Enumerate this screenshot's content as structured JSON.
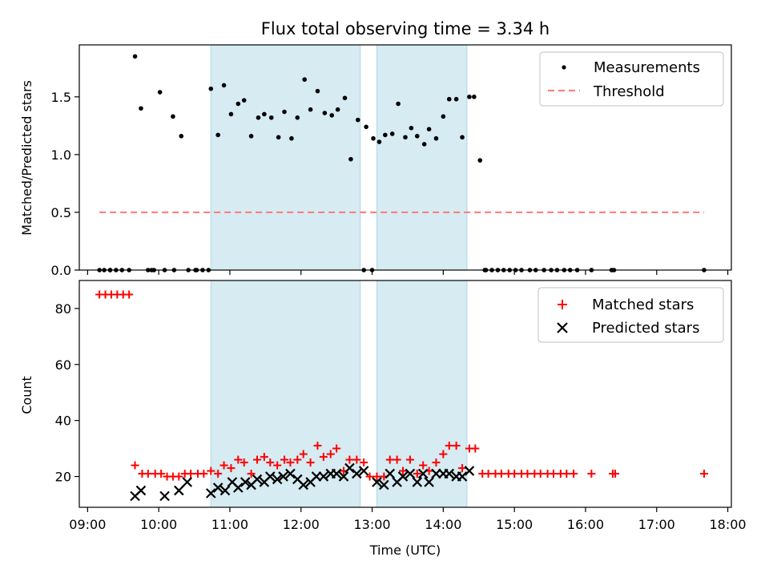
{
  "chart_data": [
    {
      "type": "scatter",
      "title": "Flux total observing time = 3.34 h",
      "xlabel": "",
      "ylabel": "Matched/Predicted stars",
      "xlim": [
        "09:00",
        "18:00"
      ],
      "ylim": [
        0,
        1.95
      ],
      "yticks": [
        0.0,
        0.5,
        1.0,
        1.5
      ],
      "ytick_labels": [
        "0.0",
        "0.5",
        "1.0",
        "1.5"
      ],
      "legend_position": "top-right",
      "shaded_intervals": [
        [
          "10:44",
          "12:50"
        ],
        [
          "13:04",
          "14:20"
        ]
      ],
      "series": [
        {
          "name": "Measurements",
          "kind": "points",
          "color": "#000000",
          "x": [
            "09:10",
            "09:14",
            "09:19",
            "09:24",
            "09:29",
            "09:35",
            "09:40",
            "09:45",
            "09:51",
            "09:56",
            "10:01",
            "10:05",
            "10:12",
            "10:19",
            "10:25",
            "10:31",
            "10:37",
            "10:44",
            "10:50",
            "10:55",
            "11:01",
            "11:07",
            "11:12",
            "11:18",
            "11:24",
            "11:29",
            "11:35",
            "11:41",
            "11:46",
            "11:52",
            "11:57",
            "12:03",
            "12:08",
            "12:14",
            "12:20",
            "12:26",
            "12:31",
            "12:37",
            "12:42",
            "12:48",
            "12:55",
            "13:01",
            "13:06",
            "13:11",
            "13:17",
            "13:22",
            "13:28",
            "13:33",
            "13:38",
            "13:44",
            "13:48",
            "13:54",
            "14:00",
            "14:05",
            "14:11",
            "14:16",
            "14:22",
            "14:26",
            "14:31",
            "14:36",
            "14:41",
            "14:46",
            "14:51",
            "14:56",
            "15:01",
            "15:06",
            "15:13",
            "15:18",
            "15:25",
            "15:31",
            "15:36",
            "15:42",
            "15:47",
            "15:53",
            "16:05",
            "16:22",
            "16:24",
            "17:40",
            "09:19",
            "10:13",
            "09:54",
            "10:32",
            "10:42",
            "12:53",
            "13:00",
            "14:35"
          ],
          "y": [
            0,
            0,
            0,
            0,
            0,
            0,
            1.85,
            1.4,
            0,
            0,
            1.54,
            0,
            1.33,
            1.16,
            0,
            0,
            0,
            1.57,
            1.17,
            1.6,
            1.35,
            1.44,
            1.47,
            1.16,
            1.32,
            1.35,
            1.32,
            1.15,
            1.37,
            1.14,
            1.32,
            1.65,
            1.39,
            1.55,
            1.36,
            1.34,
            1.39,
            1.49,
            0.96,
            1.3,
            1.24,
            1.14,
            1.11,
            1.17,
            1.18,
            1.44,
            1.15,
            1.23,
            1.16,
            1.09,
            1.22,
            1.14,
            1.33,
            1.48,
            1.48,
            1.15,
            1.5,
            1.5,
            0.95,
            0,
            0,
            0,
            0,
            0,
            0,
            0,
            0,
            0,
            0,
            0,
            0,
            0,
            0,
            0,
            0,
            0,
            0,
            0,
            0,
            0,
            0,
            0,
            0,
            0,
            0,
            0
          ]
        },
        {
          "name": "Threshold",
          "kind": "dashed-line",
          "color": "#ff7f7f",
          "x": [
            "09:10",
            "17:40"
          ],
          "y": [
            0.5,
            0.5
          ]
        }
      ]
    },
    {
      "type": "scatter",
      "title": "",
      "xlabel": "Time (UTC)",
      "ylabel": "Count",
      "xlim": [
        "09:00",
        "18:00"
      ],
      "xtick_labels": [
        "09:00",
        "10:00",
        "11:00",
        "12:00",
        "13:00",
        "14:00",
        "15:00",
        "16:00",
        "17:00",
        "18:00"
      ],
      "ylim": [
        9,
        90
      ],
      "yticks": [
        20,
        40,
        60,
        80
      ],
      "ytick_labels": [
        "20",
        "40",
        "60",
        "80"
      ],
      "legend_position": "top-right",
      "shaded_intervals": [
        [
          "10:44",
          "12:50"
        ],
        [
          "13:04",
          "14:20"
        ]
      ],
      "series": [
        {
          "name": "Matched stars",
          "marker": "plus",
          "color": "#ff0000",
          "x": [
            "09:10",
            "09:15",
            "09:20",
            "09:25",
            "09:30",
            "09:35",
            "09:40",
            "09:46",
            "09:51",
            "09:57",
            "10:02",
            "10:07",
            "10:12",
            "10:17",
            "10:22",
            "10:27",
            "10:33",
            "10:38",
            "10:44",
            "10:50",
            "10:55",
            "11:01",
            "11:07",
            "11:12",
            "11:18",
            "11:23",
            "11:29",
            "11:34",
            "11:40",
            "11:46",
            "11:51",
            "11:57",
            "12:02",
            "12:08",
            "12:14",
            "12:19",
            "12:25",
            "12:30",
            "12:36",
            "12:41",
            "12:47",
            "12:53",
            "12:58",
            "13:04",
            "13:10",
            "13:15",
            "13:21",
            "13:26",
            "13:32",
            "13:38",
            "13:43",
            "13:48",
            "13:54",
            "14:00",
            "14:05",
            "14:11",
            "14:16",
            "14:22",
            "14:27",
            "14:33",
            "14:38",
            "14:44",
            "14:49",
            "14:55",
            "15:00",
            "15:06",
            "15:11",
            "15:17",
            "15:22",
            "15:28",
            "15:33",
            "15:39",
            "15:44",
            "15:50",
            "16:05",
            "16:23",
            "16:25",
            "17:40"
          ],
          "y": [
            85,
            85,
            85,
            85,
            85,
            85,
            24,
            21,
            21,
            21,
            21,
            20,
            20,
            20,
            21,
            21,
            21,
            21,
            22,
            21,
            24,
            23,
            26,
            25,
            21,
            26,
            27,
            25,
            24,
            26,
            25,
            26,
            28,
            25,
            31,
            27,
            28,
            30,
            22,
            26,
            26,
            25,
            20,
            20,
            20,
            26,
            26,
            22,
            26,
            21,
            24,
            22,
            25,
            28,
            31,
            31,
            23,
            30,
            30,
            21,
            21,
            21,
            21,
            21,
            21,
            21,
            21,
            21,
            21,
            21,
            21,
            21,
            21,
            21,
            21,
            21,
            21,
            21
          ]
        },
        {
          "name": "Predicted stars",
          "marker": "x",
          "color": "#000000",
          "x": [
            "09:40",
            "09:45",
            "10:05",
            "10:17",
            "10:24",
            "10:44",
            "10:50",
            "10:56",
            "11:02",
            "11:07",
            "11:13",
            "11:18",
            "11:23",
            "11:29",
            "11:34",
            "11:40",
            "11:45",
            "11:51",
            "11:57",
            "12:02",
            "12:08",
            "12:13",
            "12:19",
            "12:25",
            "12:30",
            "12:36",
            "12:41",
            "12:47",
            "12:53",
            "13:04",
            "13:10",
            "13:15",
            "13:21",
            "13:26",
            "13:32",
            "13:38",
            "13:43",
            "13:48",
            "13:54",
            "14:00",
            "14:05",
            "14:11",
            "14:16",
            "14:22"
          ],
          "y": [
            13,
            15,
            13,
            15,
            18,
            14,
            16,
            15,
            18,
            16,
            18,
            17,
            19,
            18,
            20,
            19,
            20,
            21,
            19,
            17,
            18,
            20,
            20,
            21,
            21,
            20,
            23,
            21,
            22,
            18,
            17,
            21,
            18,
            20,
            21,
            18,
            21,
            18,
            21,
            21,
            21,
            20,
            20,
            22
          ]
        }
      ]
    }
  ]
}
